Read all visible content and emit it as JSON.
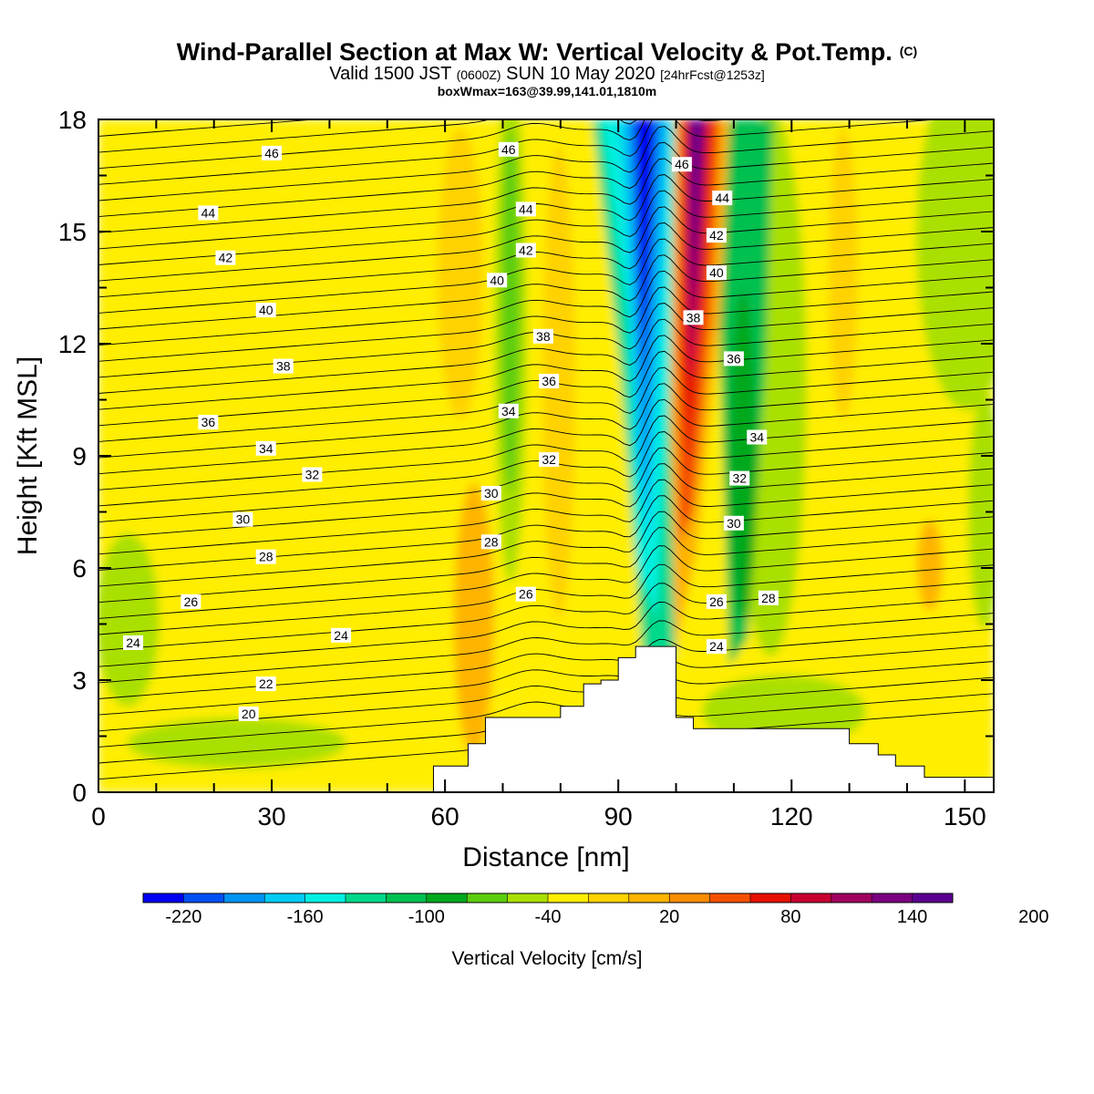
{
  "header": {
    "title": "Wind-Parallel Section at Max W: Vertical Velocity & Pot.Temp.",
    "copyright": "(C)",
    "valid_prefix": "Valid 1500 JST",
    "valid_utc": "(0600Z)",
    "valid_date": "SUN 10 May 2020",
    "forecast": "[24hrFcst@1253z]",
    "boxwmax": "boxWmax=163@39.99,141.01,1810m"
  },
  "chart_data": {
    "type": "heatmap",
    "xlabel": "Distance [nm]",
    "ylabel": "Height [Kft MSL]",
    "xlim": [
      0,
      155
    ],
    "ylim": [
      0,
      18
    ],
    "x_ticks": [
      0,
      30,
      60,
      90,
      120,
      150
    ],
    "y_ticks": [
      0,
      3,
      6,
      9,
      12,
      15,
      18
    ],
    "colorbar": {
      "title": "Vertical Velocity [cm/s]",
      "labels": [
        -220,
        -160,
        -100,
        -40,
        20,
        80,
        140,
        200
      ],
      "colors": [
        "#0000f0",
        "#0050f5",
        "#0094f5",
        "#00ccf5",
        "#00f0e0",
        "#00d88a",
        "#00c050",
        "#00a81e",
        "#5ccd10",
        "#aae000",
        "#ffee00",
        "#ffd200",
        "#ffb400",
        "#fa8c00",
        "#f55000",
        "#e61000",
        "#c80030",
        "#a00060",
        "#7a0080",
        "#5a0090"
      ]
    },
    "background_value_cms": 10,
    "features": [
      {
        "type": "downdraft",
        "min_cms": -220,
        "x": 94,
        "z_range": [
          4,
          18
        ]
      },
      {
        "type": "updraft",
        "max_cms": 200,
        "x": 102,
        "z_range": [
          4,
          18
        ]
      },
      {
        "type": "sinking",
        "min_cms": -60,
        "x": 112,
        "z_range": [
          3,
          18
        ]
      },
      {
        "type": "sinking",
        "min_cms": -30,
        "x": 71,
        "z_range": [
          5,
          18
        ]
      }
    ],
    "terrain": {
      "x": [
        58,
        64,
        67,
        73,
        80,
        84,
        87,
        90,
        93,
        94,
        97,
        100,
        103,
        107,
        110,
        118,
        125,
        130,
        135,
        138,
        141,
        143,
        155
      ],
      "z": [
        0.7,
        1.3,
        2.0,
        2.0,
        2.3,
        2.9,
        3.0,
        3.6,
        3.9,
        3.9,
        3.9,
        2.0,
        1.7,
        1.7,
        1.7,
        1.7,
        1.7,
        1.3,
        1.0,
        0.7,
        0.7,
        0.4,
        0.4
      ]
    },
    "theta_contours": {
      "levels": [
        20,
        22,
        24,
        26,
        28,
        30,
        32,
        34,
        36,
        38,
        40,
        42,
        44,
        46
      ],
      "labels": [
        {
          "text": "46",
          "x": 30,
          "y": 17.1
        },
        {
          "text": "44",
          "x": 19,
          "y": 15.5
        },
        {
          "text": "42",
          "x": 22,
          "y": 14.3
        },
        {
          "text": "40",
          "x": 29,
          "y": 12.9
        },
        {
          "text": "38",
          "x": 32,
          "y": 11.4
        },
        {
          "text": "36",
          "x": 19,
          "y": 9.9
        },
        {
          "text": "34",
          "x": 29,
          "y": 9.2
        },
        {
          "text": "32",
          "x": 37,
          "y": 8.5
        },
        {
          "text": "30",
          "x": 25,
          "y": 7.3
        },
        {
          "text": "28",
          "x": 29,
          "y": 6.3
        },
        {
          "text": "26",
          "x": 16,
          "y": 5.1
        },
        {
          "text": "24",
          "x": 6,
          "y": 4.0
        },
        {
          "text": "24",
          "x": 42,
          "y": 4.2
        },
        {
          "text": "22",
          "x": 29,
          "y": 2.9
        },
        {
          "text": "20",
          "x": 26,
          "y": 2.1
        },
        {
          "text": "46",
          "x": 71,
          "y": 17.2
        },
        {
          "text": "44",
          "x": 74,
          "y": 15.6
        },
        {
          "text": "42",
          "x": 74,
          "y": 14.5
        },
        {
          "text": "40",
          "x": 69,
          "y": 13.7
        },
        {
          "text": "38",
          "x": 77,
          "y": 12.2
        },
        {
          "text": "36",
          "x": 78,
          "y": 11.0
        },
        {
          "text": "34",
          "x": 71,
          "y": 10.2
        },
        {
          "text": "32",
          "x": 78,
          "y": 8.9
        },
        {
          "text": "30",
          "x": 68,
          "y": 8.0
        },
        {
          "text": "28",
          "x": 68,
          "y": 6.7
        },
        {
          "text": "26",
          "x": 74,
          "y": 5.3
        },
        {
          "text": "46",
          "x": 101,
          "y": 16.8
        },
        {
          "text": "44",
          "x": 108,
          "y": 15.9
        },
        {
          "text": "42",
          "x": 107,
          "y": 14.9
        },
        {
          "text": "40",
          "x": 107,
          "y": 13.9
        },
        {
          "text": "38",
          "x": 103,
          "y": 12.7
        },
        {
          "text": "36",
          "x": 110,
          "y": 11.6
        },
        {
          "text": "34",
          "x": 114,
          "y": 9.5
        },
        {
          "text": "32",
          "x": 111,
          "y": 8.4
        },
        {
          "text": "30",
          "x": 110,
          "y": 7.2
        },
        {
          "text": "28",
          "x": 116,
          "y": 5.2
        },
        {
          "text": "26",
          "x": 107,
          "y": 5.1
        },
        {
          "text": "24",
          "x": 107,
          "y": 3.9
        }
      ]
    }
  }
}
